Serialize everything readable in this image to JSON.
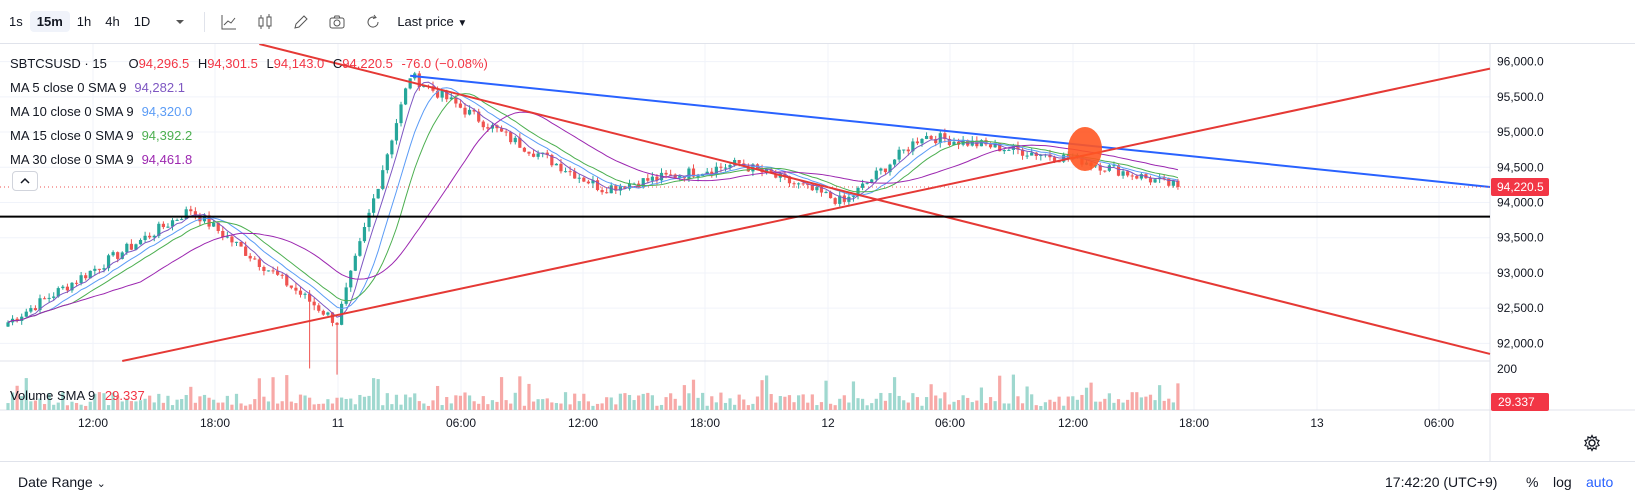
{
  "toolbar": {
    "intervals": [
      "1s",
      "15m",
      "1h",
      "4h",
      "1D"
    ],
    "active_interval": "15m",
    "price_mode": "Last price"
  },
  "legend": {
    "symbol": "SBTCSUSD",
    "interval": "15",
    "ohlc": {
      "o_label": "O",
      "open": "94,296.5",
      "h_label": "H",
      "high": "94,301.5",
      "l_label": "L",
      "low": "94,143.0",
      "c_label": "C",
      "close": "94,220.5",
      "change": "-76.0 (−0.08%)"
    },
    "indicators": [
      {
        "label": "MA 5 close 0 SMA 9",
        "value": "94,282.1",
        "color": "#7e57c2"
      },
      {
        "label": "MA 10 close 0 SMA 9",
        "value": "94,320.0",
        "color": "#5b9cf6"
      },
      {
        "label": "MA 15 close 0 SMA 9",
        "value": "94,392.2",
        "color": "#4caf50"
      },
      {
        "label": "MA 30 close 0 SMA 9",
        "value": "94,461.8",
        "color": "#9c27b0"
      }
    ],
    "volume_label": "Volume SMA 9",
    "volume_value": "29.337"
  },
  "colors": {
    "up": "#26a69a",
    "down": "#ef5350",
    "trend_red": "#e53935",
    "trend_blue": "#2962ff",
    "hline": "#000000",
    "marker": "#ff5722"
  },
  "chart_data": {
    "type": "candlestick",
    "price_axis": {
      "ticks": [
        "96,000.0",
        "95,500.0",
        "95,000.0",
        "94,500.0",
        "94,000.0",
        "93,500.0",
        "93,000.0",
        "92,500.0",
        "92,000.0"
      ],
      "ylim": [
        91750,
        96250
      ]
    },
    "volume_axis": {
      "ticks": [
        "200"
      ]
    },
    "time_axis": {
      "ticks": [
        "12:00",
        "18:00",
        "11",
        "06:00",
        "12:00",
        "18:00",
        "12",
        "06:00",
        "12:00",
        "18:00",
        "13",
        "06:00"
      ]
    },
    "last_price": "94,220.5",
    "last_volume": "29.337",
    "key_points": [
      {
        "time_index": 0,
        "price": 92300
      },
      {
        "time_index": 40,
        "price": 93900
      },
      {
        "time_index": 72,
        "price": 92300
      },
      {
        "time_index": 88,
        "price": 95800
      },
      {
        "time_index": 110,
        "price": 94900
      },
      {
        "time_index": 130,
        "price": 94200
      },
      {
        "time_index": 160,
        "price": 94550
      },
      {
        "time_index": 183,
        "price": 94000
      },
      {
        "time_index": 200,
        "price": 94950
      },
      {
        "time_index": 235,
        "price": 94600
      },
      {
        "time_index": 256,
        "price": 94220
      }
    ],
    "drawings": [
      {
        "type": "trendline",
        "color": "blue",
        "from": {
          "time_index": 88,
          "price": 95800
        },
        "to": {
          "time_index": 330,
          "price": 94220
        }
      },
      {
        "type": "trendline",
        "color": "red",
        "from": {
          "time_index": 55,
          "price": 96250
        },
        "to": {
          "time_index": 330,
          "price": 91850
        }
      },
      {
        "type": "trendline",
        "color": "red",
        "from": {
          "time_index": 25,
          "price": 91750
        },
        "to": {
          "time_index": 330,
          "price": 95900
        }
      },
      {
        "type": "horizontal_line",
        "color": "black",
        "price": 93800
      }
    ]
  }
}
